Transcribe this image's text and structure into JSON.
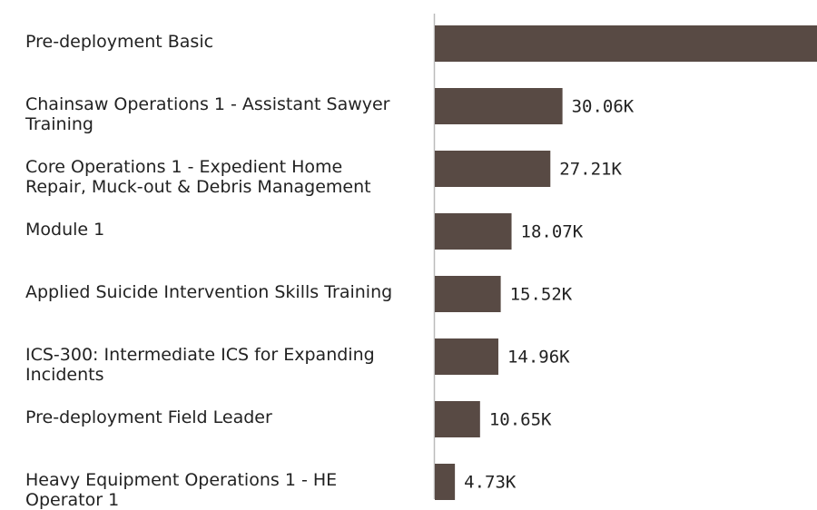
{
  "chart_data": {
    "type": "bar",
    "orientation": "horizontal",
    "categories": [
      "Pre-deployment Basic",
      "Chainsaw Operations 1 - Assistant Sawyer Training",
      "Core Operations 1 - Expedient Home Repair, Muck-out & Debris Management",
      "Module 1",
      "Applied Suicide Intervention Skills Training",
      "ICS-300: Intermediate ICS for Expanding Incidents",
      "Pre-deployment Field Leader",
      "Heavy Equipment Operations 1 - HE Operator 1"
    ],
    "values": [
      90000,
      30060,
      27210,
      18070,
      15520,
      14960,
      10650,
      4730
    ],
    "value_labels": [
      null,
      "30.06K",
      "27.21K",
      "18.07K",
      "15.52K",
      "14.96K",
      "10.65K",
      "4.73K"
    ],
    "color": "#584a44",
    "xlim": [
      0,
      90000
    ]
  }
}
